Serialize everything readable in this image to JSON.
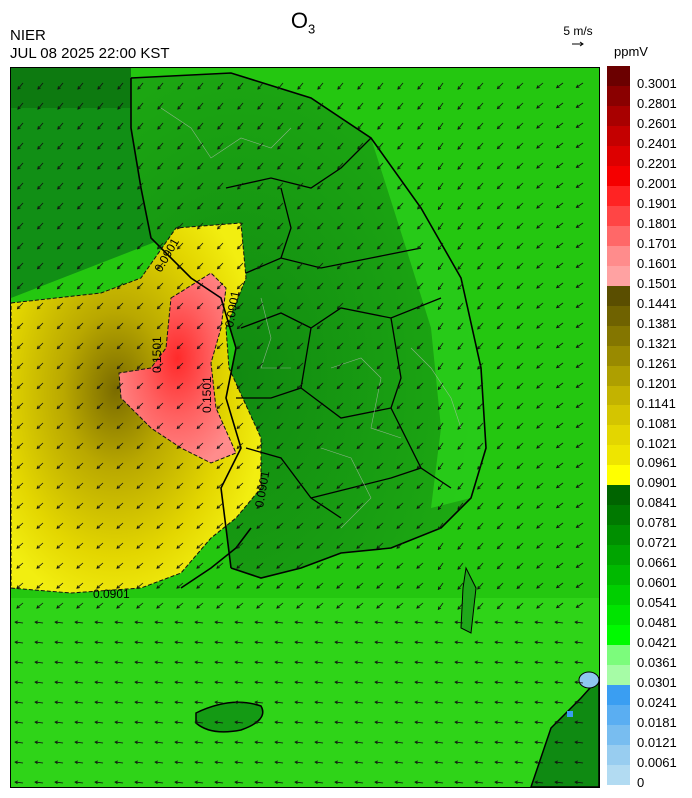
{
  "header": {
    "title_main": "O",
    "title_sub": "3",
    "org": "NIER",
    "timestamp": "JUL 08 2025 22:00 KST",
    "wind_ref": "5 m/s",
    "unit": "ppmV"
  },
  "legend": {
    "levels": [
      {
        "label": "0.3001",
        "color": "#6b0000"
      },
      {
        "label": "0.2801",
        "color": "#8a0000"
      },
      {
        "label": "0.2601",
        "color": "#a80000"
      },
      {
        "label": "0.2401",
        "color": "#c40000"
      },
      {
        "label": "0.2201",
        "color": "#dd0000"
      },
      {
        "label": "0.2001",
        "color": "#f50000"
      },
      {
        "label": "0.1901",
        "color": "#ff2323"
      },
      {
        "label": "0.1801",
        "color": "#ff4545"
      },
      {
        "label": "0.1701",
        "color": "#ff6868"
      },
      {
        "label": "0.1601",
        "color": "#ff8c8c"
      },
      {
        "label": "0.1501",
        "color": "#ffa2a2"
      },
      {
        "label": "0.1441",
        "color": "#5a4e00"
      },
      {
        "label": "0.1381",
        "color": "#6f6200"
      },
      {
        "label": "0.1321",
        "color": "#847600"
      },
      {
        "label": "0.1261",
        "color": "#998a00"
      },
      {
        "label": "0.1201",
        "color": "#ae9f00"
      },
      {
        "label": "0.1141",
        "color": "#c3b300"
      },
      {
        "label": "0.1081",
        "color": "#d4c500"
      },
      {
        "label": "0.1021",
        "color": "#e3d600"
      },
      {
        "label": "0.0961",
        "color": "#eee500"
      },
      {
        "label": "0.0901",
        "color": "#ffff00"
      },
      {
        "label": "0.0841",
        "color": "#006400"
      },
      {
        "label": "0.0781",
        "color": "#007900"
      },
      {
        "label": "0.0721",
        "color": "#008f00"
      },
      {
        "label": "0.0661",
        "color": "#00a400"
      },
      {
        "label": "0.0601",
        "color": "#00b900"
      },
      {
        "label": "0.0541",
        "color": "#00cf00"
      },
      {
        "label": "0.0481",
        "color": "#00e400"
      },
      {
        "label": "0.0421",
        "color": "#00fa00"
      },
      {
        "label": "0.0361",
        "color": "#7cfc7c"
      },
      {
        "label": "0.0301",
        "color": "#a6fca6"
      },
      {
        "label": "0.0241",
        "color": "#3a9ef2"
      },
      {
        "label": "0.0181",
        "color": "#5aaef2"
      },
      {
        "label": "0.0121",
        "color": "#78bdf0"
      },
      {
        "label": "0.0061",
        "color": "#98cdf0"
      },
      {
        "label": "0",
        "color": "#b2dbf2"
      }
    ]
  },
  "contour_labels": [
    "0.0901",
    "0.1501",
    "0.0901",
    "0.1501",
    "0.0901",
    "0.0901"
  ],
  "map_icons": [
    "wind-vector-field",
    "coastline",
    "province-boundaries"
  ]
}
